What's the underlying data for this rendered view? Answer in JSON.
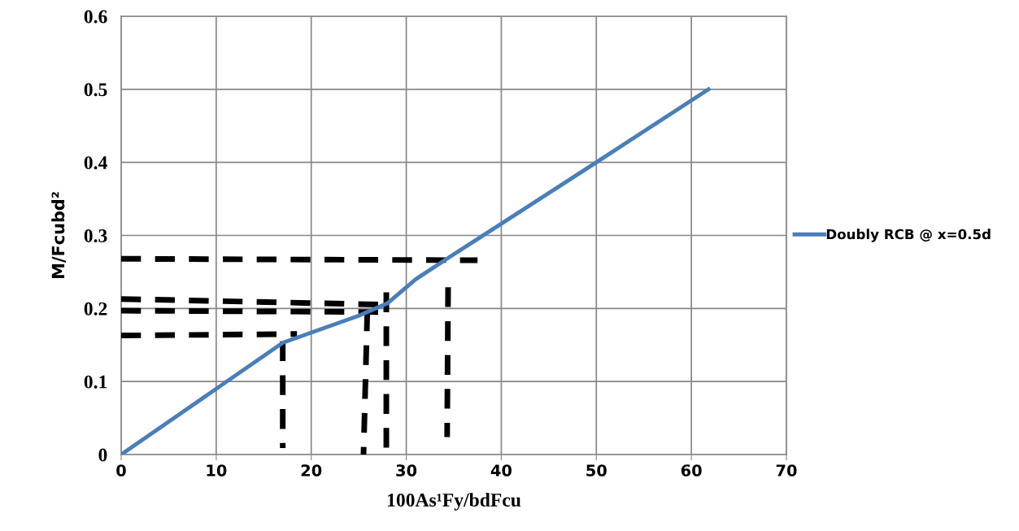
{
  "chart_data": {
    "type": "line",
    "xlabel": "100As¹Fy/bdFcu",
    "ylabel": "M/Fcubd²",
    "xlim": [
      0,
      70
    ],
    "xticks": [
      0,
      10,
      20,
      30,
      40,
      50,
      60,
      70
    ],
    "ylim": [
      0,
      0.6
    ],
    "yticks": [
      0,
      0.1,
      0.2,
      0.3,
      0.4,
      0.5,
      0.6
    ],
    "grid": true,
    "legend": "right",
    "marker": "none",
    "series": [
      {
        "name": "Doubly RCB @ x=0.5d",
        "color": "#4a7ebb",
        "line_style": "solid",
        "x": [
          0,
          17,
          25,
          28,
          31,
          34.5,
          40,
          50,
          61.8
        ],
        "values": [
          0,
          0.153,
          0.19,
          0.207,
          0.24,
          0.27,
          0.316,
          0.4,
          0.5
        ]
      },
      {
        "color": "#000000",
        "line_style": "dashed",
        "x": [
          0,
          37.5
        ],
        "values": [
          0.268,
          0.266
        ]
      },
      {
        "color": "#000000",
        "line_style": "dashed",
        "x": [
          0,
          28.5
        ],
        "values": [
          0.213,
          0.205
        ]
      },
      {
        "color": "#000000",
        "line_style": "dashed",
        "x": [
          0,
          28.5
        ],
        "values": [
          0.197,
          0.195
        ]
      },
      {
        "color": "#000000",
        "line_style": "dashed",
        "x": [
          0,
          18.5
        ],
        "values": [
          0.163,
          0.165
        ]
      },
      {
        "color": "#000000",
        "line_style": "dashed",
        "x": [
          17,
          17
        ],
        "values": [
          0.155,
          0.009
        ]
      },
      {
        "color": "#000000",
        "line_style": "dashed",
        "x": [
          25.9,
          25.5
        ],
        "values": [
          0.196,
          0
        ]
      },
      {
        "color": "#000000",
        "line_style": "dashed",
        "x": [
          27.9,
          27.9
        ],
        "values": [
          0.222,
          0
        ]
      },
      {
        "color": "#000000",
        "line_style": "dashed",
        "x": [
          34.4,
          34.3
        ],
        "values": [
          0.229,
          0.024
        ]
      }
    ]
  }
}
